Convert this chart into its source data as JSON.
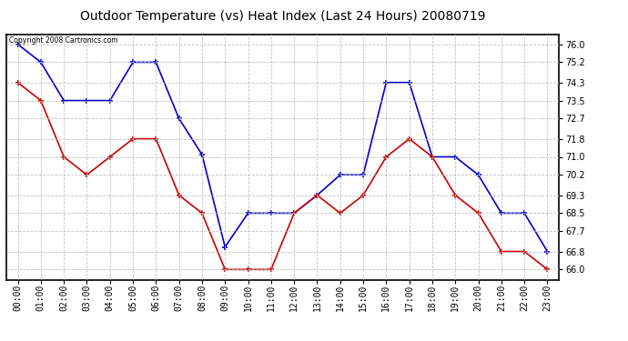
{
  "title": "Outdoor Temperature (vs) Heat Index (Last 24 Hours) 20080719",
  "copyright_text": "Copyright 2008 Cartronics.com",
  "hours": [
    "00:00",
    "01:00",
    "02:00",
    "03:00",
    "04:00",
    "05:00",
    "06:00",
    "07:00",
    "08:00",
    "09:00",
    "10:00",
    "11:00",
    "12:00",
    "13:00",
    "14:00",
    "15:00",
    "16:00",
    "17:00",
    "18:00",
    "19:00",
    "20:00",
    "21:00",
    "22:00",
    "23:00"
  ],
  "blue_temp": [
    76.0,
    75.2,
    73.5,
    73.5,
    73.5,
    75.2,
    75.2,
    72.7,
    71.1,
    67.0,
    68.5,
    68.5,
    68.5,
    69.3,
    70.2,
    70.2,
    74.3,
    74.3,
    71.0,
    71.0,
    70.2,
    68.5,
    68.5,
    66.8
  ],
  "red_heat": [
    74.3,
    73.5,
    71.0,
    70.2,
    71.0,
    71.8,
    71.8,
    69.3,
    68.5,
    66.0,
    66.0,
    66.0,
    68.5,
    69.3,
    68.5,
    69.3,
    71.0,
    71.8,
    71.0,
    69.3,
    68.5,
    66.8,
    66.8,
    66.0
  ],
  "blue_color": "#0000cc",
  "red_color": "#cc0000",
  "bg_color": "#ffffff",
  "plot_bg_color": "#ffffff",
  "grid_color": "#bbbbbb",
  "yticks": [
    66.0,
    66.8,
    67.7,
    68.5,
    69.3,
    70.2,
    71.0,
    71.8,
    72.7,
    73.5,
    74.3,
    75.2,
    76.0
  ],
  "ylim_min": 65.55,
  "ylim_max": 76.45,
  "title_fontsize": 10,
  "tick_fontsize": 7,
  "marker": "+",
  "marker_size": 5,
  "line_width": 1.2
}
